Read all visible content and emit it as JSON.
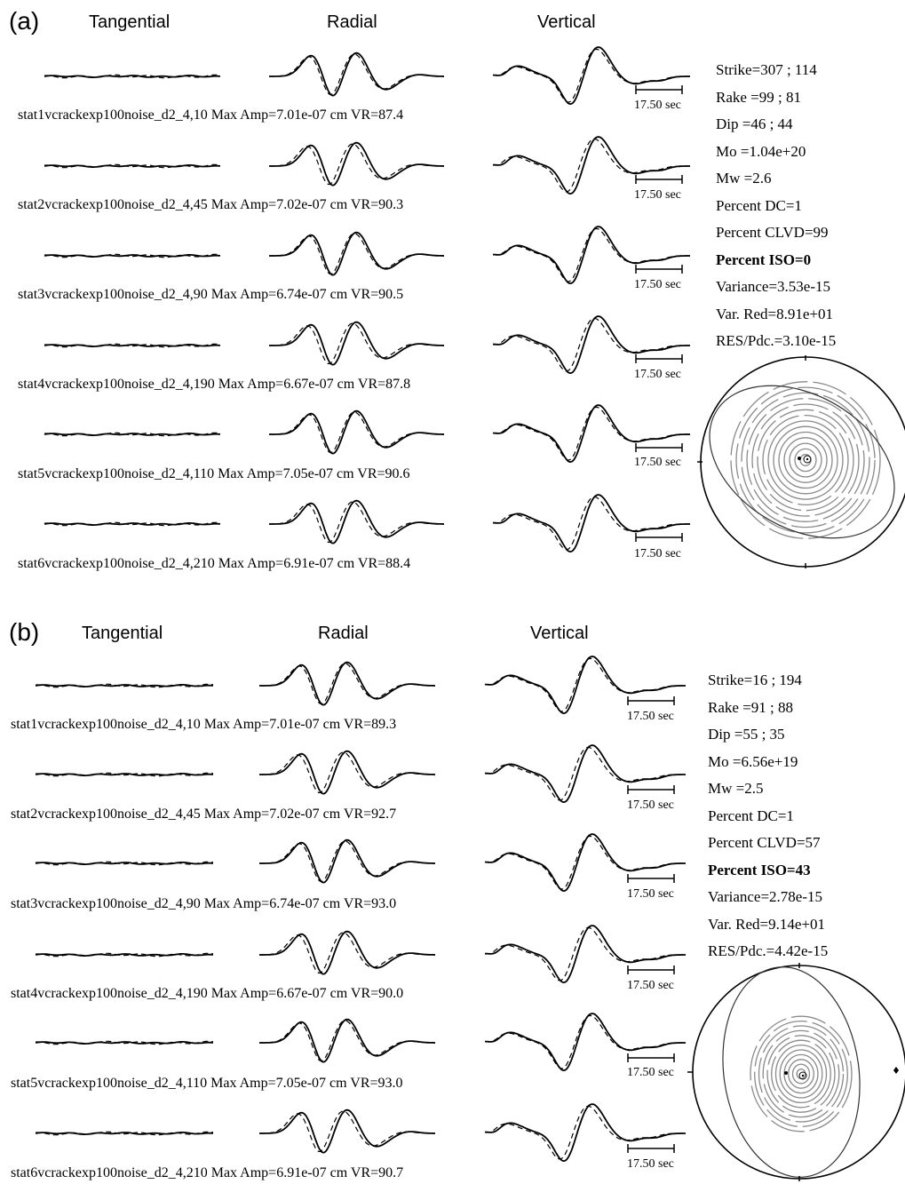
{
  "panels": [
    {
      "label": "(a)",
      "headers": [
        "Tangential",
        "Radial",
        "Vertical"
      ],
      "scale_label": "17.50 sec",
      "rows": [
        {
          "caption": "stat1vcrackexp100noise_d2_4,10  Max Amp=7.01e-07 cm  VR=87.4"
        },
        {
          "caption": "stat2vcrackexp100noise_d2_4,45  Max Amp=7.02e-07 cm  VR=90.3"
        },
        {
          "caption": "stat3vcrackexp100noise_d2_4,90  Max Amp=6.74e-07 cm  VR=90.5"
        },
        {
          "caption": "stat4vcrackexp100noise_d2_4,190  Max Amp=6.67e-07 cm  VR=87.8"
        },
        {
          "caption": "stat5vcrackexp100noise_d2_4,110  Max Amp=7.05e-07 cm  VR=90.6"
        },
        {
          "caption": "stat6vcrackexp100noise_d2_4,210  Max Amp=6.91e-07 cm  VR=88.4"
        }
      ],
      "params": [
        "Strike=307 ; 114",
        "Rake  =99 ; 81",
        "Dip   =46 ; 44",
        "Mo    =1.04e+20",
        "Mw    =2.6",
        "Percent DC=1",
        "Percent CLVD=99",
        "Percent ISO=0",
        "Variance=3.53e-15",
        "Var. Red=8.91e+01",
        "RES/Pdc.=3.10e-15"
      ]
    },
    {
      "label": "(b)",
      "headers": [
        "Tangential",
        "Radial",
        "Vertical"
      ],
      "scale_label": "17.50 sec",
      "rows": [
        {
          "caption": "stat1vcrackexp100noise_d2_4,10  Max Amp=7.01e-07 cm  VR=89.3"
        },
        {
          "caption": "stat2vcrackexp100noise_d2_4,45  Max Amp=7.02e-07 cm  VR=92.7"
        },
        {
          "caption": "stat3vcrackexp100noise_d2_4,90  Max Amp=6.74e-07 cm  VR=93.0"
        },
        {
          "caption": "stat4vcrackexp100noise_d2_4,190  Max Amp=6.67e-07 cm  VR=90.0"
        },
        {
          "caption": "stat5vcrackexp100noise_d2_4,110  Max Amp=7.05e-07 cm  VR=93.0"
        },
        {
          "caption": "stat6vcrackexp100noise_d2_4,210  Max Amp=6.91e-07 cm  VR=90.7"
        }
      ],
      "params": [
        "Strike=16 ; 194",
        "Rake  =91 ; 88",
        "Dip   =55 ; 35",
        "Mo    =6.56e+19",
        "Mw    =2.5",
        "Percent DC=1",
        "Percent CLVD=57",
        "Percent ISO=43",
        "Variance=2.78e-15",
        "Var. Red=9.14e+01",
        "RES/Pdc.=4.42e-15"
      ]
    }
  ]
}
